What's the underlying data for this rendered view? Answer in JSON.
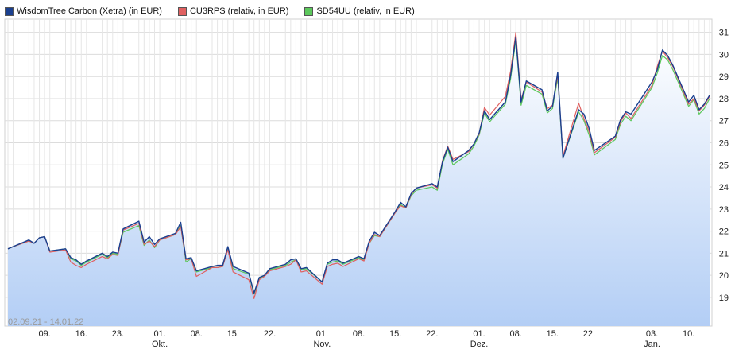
{
  "chart_data": {
    "type": "line",
    "title": "",
    "xlabel": "",
    "ylabel": "",
    "ylim": [
      17.7,
      31.6
    ],
    "y_ticks": [
      19,
      20,
      21,
      22,
      23,
      24,
      25,
      26,
      27,
      28,
      29,
      30,
      31
    ],
    "x_ticks": [
      {
        "date": "2021-09-09",
        "label": "09.",
        "sublabel": ""
      },
      {
        "date": "2021-09-16",
        "label": "16.",
        "sublabel": ""
      },
      {
        "date": "2021-09-23",
        "label": "23.",
        "sublabel": ""
      },
      {
        "date": "2021-10-01",
        "label": "01.",
        "sublabel": "Okt."
      },
      {
        "date": "2021-10-08",
        "label": "08.",
        "sublabel": ""
      },
      {
        "date": "2021-10-15",
        "label": "15.",
        "sublabel": ""
      },
      {
        "date": "2021-10-22",
        "label": "22.",
        "sublabel": ""
      },
      {
        "date": "2021-11-01",
        "label": "01.",
        "sublabel": "Nov."
      },
      {
        "date": "2021-11-08",
        "label": "08.",
        "sublabel": ""
      },
      {
        "date": "2021-11-15",
        "label": "15.",
        "sublabel": ""
      },
      {
        "date": "2021-11-22",
        "label": "22.",
        "sublabel": ""
      },
      {
        "date": "2021-12-01",
        "label": "01.",
        "sublabel": "Dez."
      },
      {
        "date": "2021-12-08",
        "label": "08.",
        "sublabel": ""
      },
      {
        "date": "2021-12-15",
        "label": "15.",
        "sublabel": ""
      },
      {
        "date": "2021-12-22",
        "label": "22.",
        "sublabel": ""
      },
      {
        "date": "2022-01-03",
        "label": "03.",
        "sublabel": "Jan."
      },
      {
        "date": "2022-01-10",
        "label": "10.",
        "sublabel": ""
      }
    ],
    "date_range_label": "02.09.21 - 14.01.22",
    "grid": true,
    "legend_position": "top-left",
    "x": [
      "2021-09-02",
      "2021-09-03",
      "2021-09-06",
      "2021-09-07",
      "2021-09-08",
      "2021-09-09",
      "2021-09-10",
      "2021-09-13",
      "2021-09-14",
      "2021-09-15",
      "2021-09-16",
      "2021-09-17",
      "2021-09-20",
      "2021-09-21",
      "2021-09-22",
      "2021-09-23",
      "2021-09-24",
      "2021-09-27",
      "2021-09-28",
      "2021-09-29",
      "2021-09-30",
      "2021-10-01",
      "2021-10-04",
      "2021-10-05",
      "2021-10-06",
      "2021-10-07",
      "2021-10-08",
      "2021-10-11",
      "2021-10-12",
      "2021-10-13",
      "2021-10-14",
      "2021-10-15",
      "2021-10-18",
      "2021-10-19",
      "2021-10-20",
      "2021-10-21",
      "2021-10-22",
      "2021-10-25",
      "2021-10-26",
      "2021-10-27",
      "2021-10-28",
      "2021-10-29",
      "2021-11-01",
      "2021-11-02",
      "2021-11-03",
      "2021-11-04",
      "2021-11-05",
      "2021-11-08",
      "2021-11-09",
      "2021-11-10",
      "2021-11-11",
      "2021-11-12",
      "2021-11-15",
      "2021-11-16",
      "2021-11-17",
      "2021-11-18",
      "2021-11-19",
      "2021-11-22",
      "2021-11-23",
      "2021-11-24",
      "2021-11-25",
      "2021-11-26",
      "2021-11-29",
      "2021-11-30",
      "2021-12-01",
      "2021-12-02",
      "2021-12-03",
      "2021-12-06",
      "2021-12-07",
      "2021-12-08",
      "2021-12-09",
      "2021-12-10",
      "2021-12-13",
      "2021-12-14",
      "2021-12-15",
      "2021-12-16",
      "2021-12-17",
      "2021-12-20",
      "2021-12-21",
      "2021-12-22",
      "2021-12-23",
      "2021-12-27",
      "2021-12-28",
      "2021-12-29",
      "2021-12-30",
      "2022-01-03",
      "2022-01-04",
      "2022-01-05",
      "2022-01-06",
      "2022-01-07",
      "2022-01-10",
      "2022-01-11",
      "2022-01-12",
      "2022-01-13",
      "2022-01-14"
    ],
    "series": [
      {
        "name": "WisdomTree Carbon (Xetra) (in EUR)",
        "color": "#1a3f8f",
        "values": [
          21.2,
          21.3,
          21.6,
          21.45,
          21.7,
          21.75,
          21.1,
          21.2,
          20.8,
          20.7,
          20.5,
          20.65,
          21.0,
          20.85,
          21.05,
          21.0,
          22.1,
          22.45,
          21.5,
          21.75,
          21.4,
          21.65,
          21.9,
          22.4,
          20.75,
          20.8,
          20.2,
          20.4,
          20.45,
          20.45,
          21.3,
          20.4,
          20.1,
          19.2,
          19.9,
          20.0,
          20.3,
          20.5,
          20.7,
          20.75,
          20.3,
          20.35,
          19.7,
          20.55,
          20.7,
          20.7,
          20.55,
          20.85,
          20.75,
          21.55,
          21.95,
          21.8,
          22.9,
          23.3,
          23.1,
          23.7,
          23.95,
          24.15,
          24.0,
          25.15,
          25.8,
          25.15,
          25.65,
          25.95,
          26.45,
          27.45,
          27.05,
          27.85,
          29.05,
          30.8,
          27.85,
          28.8,
          28.4,
          27.45,
          27.65,
          29.2,
          25.3,
          27.5,
          27.3,
          26.65,
          25.65,
          26.3,
          27.05,
          27.4,
          27.3,
          28.75,
          29.3,
          30.2,
          29.95,
          29.5,
          27.85,
          28.15,
          27.5,
          27.75,
          28.15
        ]
      },
      {
        "name": "CU3RPS (relativ, in EUR)",
        "color": "#e06060",
        "values": [
          21.2,
          21.3,
          21.55,
          21.45,
          21.7,
          21.75,
          21.05,
          21.15,
          20.6,
          20.45,
          20.35,
          20.5,
          20.85,
          20.75,
          20.95,
          20.9,
          22.05,
          22.35,
          21.4,
          21.55,
          21.3,
          21.6,
          21.85,
          22.2,
          20.7,
          20.75,
          19.95,
          20.35,
          20.35,
          20.4,
          21.15,
          20.15,
          19.8,
          18.95,
          19.8,
          19.95,
          20.2,
          20.4,
          20.5,
          20.7,
          20.15,
          20.2,
          19.6,
          20.4,
          20.5,
          20.55,
          20.4,
          20.75,
          20.65,
          21.45,
          21.85,
          21.75,
          22.85,
          23.15,
          23.05,
          23.65,
          23.95,
          24.1,
          23.95,
          25.2,
          25.85,
          25.25,
          25.6,
          25.95,
          26.4,
          27.6,
          27.25,
          28.1,
          29.25,
          31.0,
          27.95,
          28.75,
          28.3,
          27.55,
          27.7,
          29.05,
          25.4,
          27.8,
          27.1,
          26.5,
          25.55,
          26.25,
          26.95,
          27.35,
          27.1,
          28.6,
          29.45,
          30.15,
          29.85,
          29.45,
          27.75,
          28.0,
          27.45,
          27.7,
          28.1
        ]
      },
      {
        "name": "SD54UU (relativ, in EUR)",
        "color": "#5cc85c",
        "values": [
          21.2,
          21.3,
          21.55,
          21.45,
          21.7,
          21.75,
          21.1,
          21.2,
          20.75,
          20.65,
          20.45,
          20.6,
          20.95,
          20.8,
          21.0,
          20.95,
          21.95,
          22.25,
          21.35,
          21.6,
          21.25,
          21.6,
          21.85,
          22.25,
          20.6,
          20.75,
          20.15,
          20.35,
          20.35,
          20.4,
          21.2,
          20.3,
          20.05,
          19.15,
          19.85,
          20.0,
          20.25,
          20.45,
          20.6,
          20.7,
          20.25,
          20.3,
          19.7,
          20.5,
          20.6,
          20.65,
          20.5,
          20.8,
          20.7,
          21.45,
          21.8,
          21.75,
          22.85,
          23.2,
          23.05,
          23.6,
          23.85,
          24.0,
          23.85,
          25.05,
          25.7,
          25.0,
          25.5,
          25.85,
          26.35,
          27.35,
          26.95,
          27.75,
          28.9,
          30.65,
          27.7,
          28.6,
          28.2,
          27.35,
          27.55,
          28.95,
          25.3,
          27.4,
          27.0,
          26.35,
          25.45,
          26.15,
          26.85,
          27.2,
          27.0,
          28.5,
          29.15,
          29.95,
          29.75,
          29.3,
          27.65,
          27.95,
          27.3,
          27.55,
          28.0
        ]
      }
    ]
  }
}
